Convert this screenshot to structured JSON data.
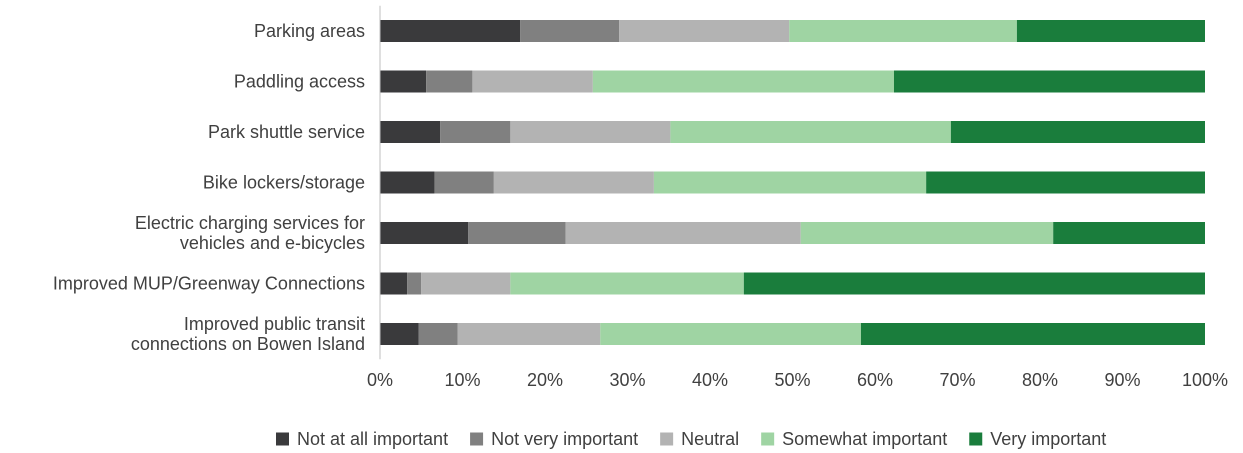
{
  "chart_data": {
    "type": "bar",
    "orientation": "horizontal",
    "stacked": "percent",
    "categories": [
      [
        "Parking areas"
      ],
      [
        "Paddling access"
      ],
      [
        "Park shuttle service"
      ],
      [
        "Bike lockers/storage"
      ],
      [
        "Electric charging services for",
        "vehicles and e-bicycles"
      ],
      [
        "Improved MUP/Greenway Connections"
      ],
      [
        "Improved public transit",
        "connections on Bowen Island"
      ]
    ],
    "series": [
      {
        "name": "Not at all important",
        "color": "#3a3a3c",
        "values": [
          17,
          5.6,
          7.3,
          6.6,
          10.7,
          3.3,
          4.7
        ]
      },
      {
        "name": "Not very important",
        "color": "#808080",
        "values": [
          12,
          5.6,
          8.5,
          7.2,
          11.8,
          1.7,
          4.7
        ]
      },
      {
        "name": "Neutral",
        "color": "#b3b3b3",
        "values": [
          20.6,
          14.6,
          19.4,
          19.4,
          28.5,
          10.8,
          17.3
        ]
      },
      {
        "name": "Somewhat important",
        "color": "#9fd4a3",
        "values": [
          27.6,
          36.5,
          34,
          33,
          30.6,
          28.3,
          31.6
        ]
      },
      {
        "name": "Very important",
        "color": "#1a7d3c",
        "values": [
          22.8,
          37.7,
          30.8,
          33.8,
          18.4,
          55.9,
          41.7
        ]
      }
    ],
    "xlim": [
      0,
      100
    ],
    "xticks": [
      "0%",
      "10%",
      "20%",
      "30%",
      "40%",
      "50%",
      "60%",
      "70%",
      "80%",
      "90%",
      "100%"
    ],
    "grid": false,
    "legend_position": "bottom"
  }
}
